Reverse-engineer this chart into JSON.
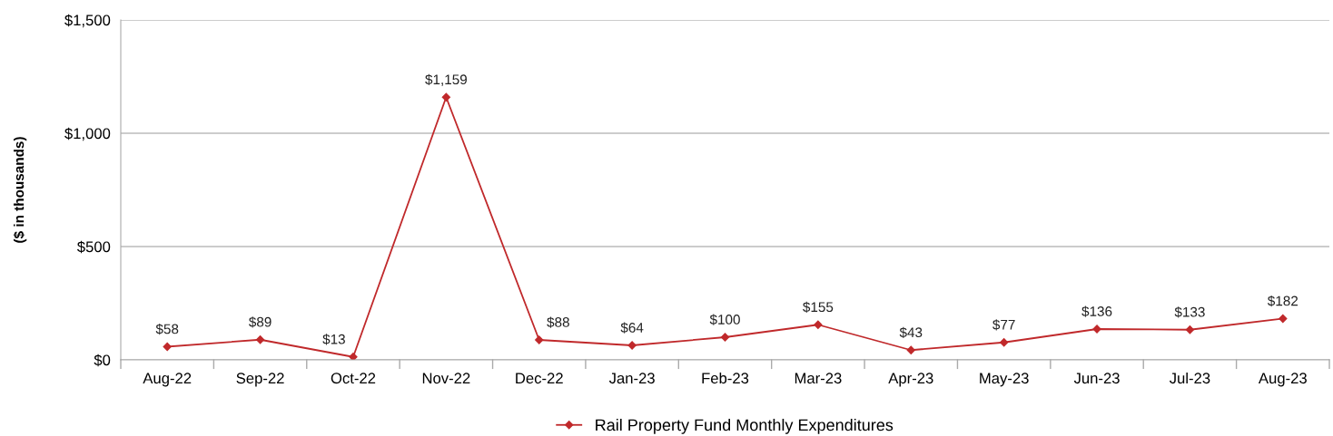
{
  "chart_data": {
    "type": "line",
    "ylabel": "($ in thousands)",
    "categories": [
      "Aug-22",
      "Sep-22",
      "Oct-22",
      "Nov-22",
      "Dec-22",
      "Jan-23",
      "Feb-23",
      "Mar-23",
      "Apr-23",
      "May-23",
      "Jun-23",
      "Jul-23",
      "Aug-23"
    ],
    "series": [
      {
        "name": "Rail Property Fund Monthly Expenditures",
        "color": "#c0292b",
        "values": [
          58,
          89,
          13,
          1159,
          88,
          64,
          100,
          155,
          43,
          77,
          136,
          133,
          182
        ],
        "value_labels": [
          "$58",
          "$89",
          "$13",
          "$1,159",
          "$88",
          "$64",
          "$100",
          "$155",
          "$43",
          "$77",
          "$136",
          "$133",
          "$182"
        ]
      }
    ],
    "ylim": [
      0,
      1500
    ],
    "yticks": [
      {
        "value": 0,
        "label": "$0"
      },
      {
        "value": 500,
        "label": "$500"
      },
      {
        "value": 1000,
        "label": "$1,000"
      },
      {
        "value": 1500,
        "label": "$1,500"
      }
    ],
    "grid": "y",
    "legend": "bottom",
    "marker": "diamond",
    "line_style": "solid"
  }
}
